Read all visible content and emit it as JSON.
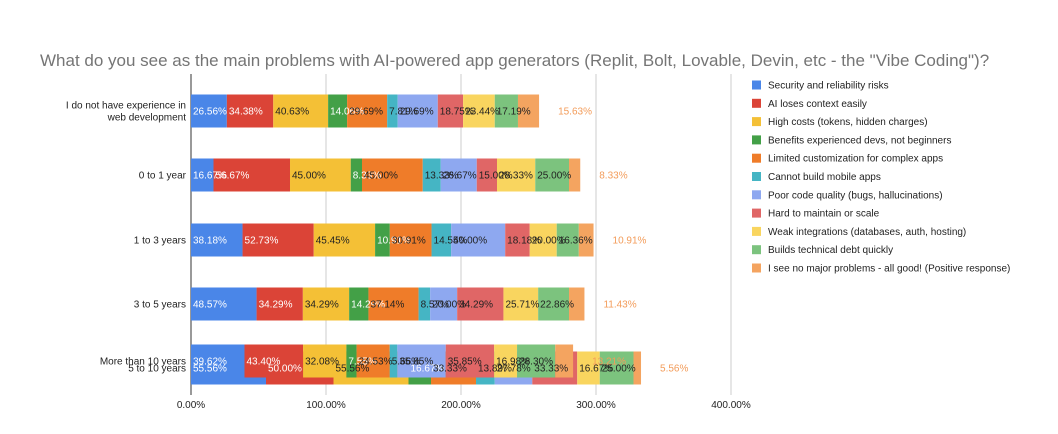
{
  "chart_data": {
    "type": "bar",
    "orientation": "horizontal",
    "stacked": true,
    "title": "What do you see as the main problems with AI-powered app generators (Replit, Bolt, Lovable, Devin, etc - the \"Vibe Coding\")?",
    "xlabel": "",
    "ylabel": "",
    "xlim": [
      0,
      400
    ],
    "x_ticks": [
      "0.00%",
      "100.00%",
      "200.00%",
      "300.00%",
      "400.00%"
    ],
    "grid": true,
    "legend_position": "right",
    "categories": [
      "I do not have experience in web development",
      "0 to 1 year",
      "1 to 3 years",
      "3 to 5 years",
      "5 to 10 years",
      "More than 10 years"
    ],
    "series": [
      {
        "name": "Security and reliability risks",
        "color": "#4a86e8",
        "values": [
          26.56,
          16.67,
          38.18,
          48.57,
          55.56,
          39.62
        ],
        "labels": [
          "26.56%",
          "16.67%",
          "38.18%",
          "48.57%",
          "55.56%",
          "39.62%"
        ]
      },
      {
        "name": "AI loses context easily",
        "color": "#db4437",
        "values": [
          34.38,
          56.67,
          52.73,
          34.29,
          50.0,
          43.4
        ],
        "labels": [
          "34.38%",
          "56.67%",
          "52.73%",
          "34.29%",
          "50.00%",
          "43.40%"
        ]
      },
      {
        "name": "High costs (tokens, hidden charges)",
        "color": "#f4c036",
        "values": [
          40.63,
          45.0,
          45.45,
          34.29,
          55.56,
          32.08
        ],
        "labels": [
          "40.63%",
          "45.00%",
          "45.45%",
          "34.29%",
          "55.56%",
          "32.08%"
        ]
      },
      {
        "name": "Benefits experienced devs, not beginners",
        "color": "#43a047",
        "values": [
          14.06,
          8.33,
          10.91,
          14.29,
          16.67,
          7.55
        ],
        "labels": [
          "14.06%",
          "8.33%",
          "10.91%",
          "14.29%",
          "16.67%",
          "7.55%"
        ]
      },
      {
        "name": "Limited customization for complex apps",
        "color": "#ef7c29",
        "values": [
          29.69,
          45.0,
          30.91,
          37.14,
          33.33,
          24.53
        ],
        "labels": [
          "29.69%",
          "45.00%",
          "30.91%",
          "37.14%",
          "33.33%",
          "24.53%"
        ]
      },
      {
        "name": "Cannot build mobile apps",
        "color": "#45b5c4",
        "values": [
          7.81,
          13.33,
          14.55,
          8.57,
          13.89,
          5.66
        ],
        "labels": [
          "7.81%",
          "13.33%",
          "14.55%",
          "8.57%",
          "13.89%",
          "5.66%"
        ]
      },
      {
        "name": "Poor code quality (bugs, hallucinations)",
        "color": "#8ea8f0",
        "values": [
          29.69,
          26.67,
          40.0,
          20.0,
          27.78,
          35.85
        ],
        "labels": [
          "29.69%",
          "26.67%",
          "40.00%",
          "20.00%",
          "27.78%",
          "35.85%"
        ]
      },
      {
        "name": "Hard to maintain or scale",
        "color": "#e06666",
        "values": [
          18.75,
          15.0,
          18.18,
          34.29,
          33.33,
          35.85
        ],
        "labels": [
          "18.75%",
          "15.00%",
          "18.18%",
          "34.29%",
          "33.33%",
          "35.85%"
        ]
      },
      {
        "name": "Weak integrations (databases, auth, hosting)",
        "color": "#f9d55f",
        "values": [
          23.44,
          28.33,
          20.0,
          25.71,
          16.67,
          16.98
        ],
        "labels": [
          "23.44%",
          "28.33%",
          "20.00%",
          "25.71%",
          "16.67%",
          "16.98%"
        ]
      },
      {
        "name": "Builds technical debt quickly",
        "color": "#7cc37e",
        "values": [
          17.19,
          25.0,
          16.36,
          22.86,
          25.0,
          28.3
        ],
        "labels": [
          "17.19%",
          "25.00%",
          "16.36%",
          "22.86%",
          "25.00%",
          "28.30%"
        ]
      },
      {
        "name": "I see no major problems - all good! (Positive response)",
        "color": "#f4a460",
        "values": [
          15.63,
          8.33,
          10.91,
          11.43,
          5.56,
          13.21
        ],
        "labels": [
          "15.63%",
          "8.33%",
          "10.91%",
          "11.43%",
          "5.56%",
          "13.21%"
        ]
      }
    ],
    "label_colors": {
      "light_text": "#ffffff",
      "dark_text": "#222222",
      "outside_text": "#f39c5a"
    }
  }
}
